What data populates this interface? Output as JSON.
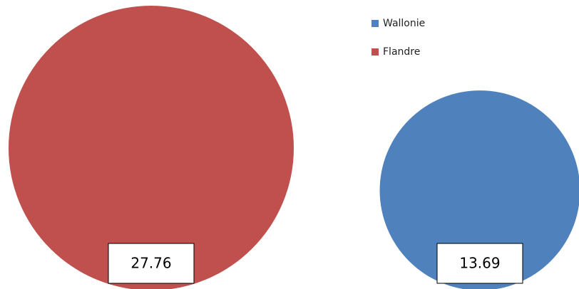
{
  "chart_data": {
    "type": "bubble",
    "series": [
      {
        "name": "Wallonie",
        "color": "#4f81bd",
        "values": [
          13.69
        ]
      },
      {
        "name": "Flandre",
        "color": "#c0504d",
        "values": [
          27.76
        ]
      }
    ]
  }
}
